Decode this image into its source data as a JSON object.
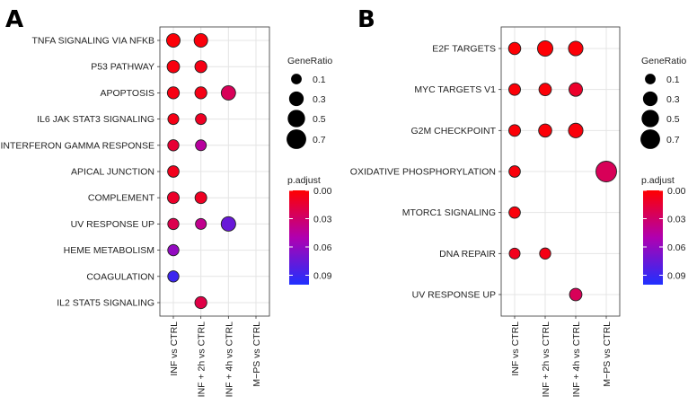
{
  "chart_data": [
    {
      "type": "scatter",
      "panel_label": "A",
      "x_categories": [
        "INF vs CTRL",
        "INF + 2h vs CTRL",
        "INF + 4h vs CTRL",
        "M−PS vs CTRL"
      ],
      "y_categories": [
        "TNFA SIGNALING VIA NFKB",
        "P53 PATHWAY",
        "APOPTOSIS",
        "IL6 JAK STAT3 SIGNALING",
        "INTERFERON GAMMA RESPONSE",
        "APICAL JUNCTION",
        "COMPLEMENT",
        "UV RESPONSE UP",
        "HEME METABOLISM",
        "COAGULATION",
        "IL2 STAT5 SIGNALING"
      ],
      "points": [
        {
          "x": "INF vs CTRL",
          "y": "TNFA SIGNALING VIA NFKB",
          "gene_ratio": 0.2,
          "p_adjust": 0.002
        },
        {
          "x": "INF + 2h vs CTRL",
          "y": "TNFA SIGNALING VIA NFKB",
          "gene_ratio": 0.2,
          "p_adjust": 0.003
        },
        {
          "x": "INF vs CTRL",
          "y": "P53 PATHWAY",
          "gene_ratio": 0.15,
          "p_adjust": 0.004
        },
        {
          "x": "INF + 2h vs CTRL",
          "y": "P53 PATHWAY",
          "gene_ratio": 0.13,
          "p_adjust": 0.006
        },
        {
          "x": "INF vs CTRL",
          "y": "APOPTOSIS",
          "gene_ratio": 0.13,
          "p_adjust": 0.005
        },
        {
          "x": "INF + 2h vs CTRL",
          "y": "APOPTOSIS",
          "gene_ratio": 0.13,
          "p_adjust": 0.006
        },
        {
          "x": "INF + 4h vs CTRL",
          "y": "APOPTOSIS",
          "gene_ratio": 0.24,
          "p_adjust": 0.025
        },
        {
          "x": "INF vs CTRL",
          "y": "IL6 JAK STAT3 SIGNALING",
          "gene_ratio": 0.09,
          "p_adjust": 0.006
        },
        {
          "x": "INF + 2h vs CTRL",
          "y": "IL6 JAK STAT3 SIGNALING",
          "gene_ratio": 0.09,
          "p_adjust": 0.01
        },
        {
          "x": "INF vs CTRL",
          "y": "INTERFERON GAMMA RESPONSE",
          "gene_ratio": 0.1,
          "p_adjust": 0.015
        },
        {
          "x": "INF + 2h vs CTRL",
          "y": "INTERFERON GAMMA RESPONSE",
          "gene_ratio": 0.09,
          "p_adjust": 0.045
        },
        {
          "x": "INF vs CTRL",
          "y": "APICAL JUNCTION",
          "gene_ratio": 0.11,
          "p_adjust": 0.008
        },
        {
          "x": "INF vs CTRL",
          "y": "COMPLEMENT",
          "gene_ratio": 0.12,
          "p_adjust": 0.012
        },
        {
          "x": "INF + 2h vs CTRL",
          "y": "COMPLEMENT",
          "gene_ratio": 0.12,
          "p_adjust": 0.01
        },
        {
          "x": "INF vs CTRL",
          "y": "UV RESPONSE UP",
          "gene_ratio": 0.1,
          "p_adjust": 0.022
        },
        {
          "x": "INF + 2h vs CTRL",
          "y": "UV RESPONSE UP",
          "gene_ratio": 0.09,
          "p_adjust": 0.04
        },
        {
          "x": "INF + 4h vs CTRL",
          "y": "UV RESPONSE UP",
          "gene_ratio": 0.25,
          "p_adjust": 0.075
        },
        {
          "x": "INF vs CTRL",
          "y": "HEME METABOLISM",
          "gene_ratio": 0.1,
          "p_adjust": 0.06
        },
        {
          "x": "INF vs CTRL",
          "y": "COAGULATION",
          "gene_ratio": 0.1,
          "p_adjust": 0.09
        },
        {
          "x": "INF + 2h vs CTRL",
          "y": "IL2 STAT5 SIGNALING",
          "gene_ratio": 0.13,
          "p_adjust": 0.02
        }
      ]
    },
    {
      "type": "scatter",
      "panel_label": "B",
      "x_categories": [
        "INF vs CTRL",
        "INF + 2h vs CTRL",
        "INF + 4h vs CTRL",
        "M−PS vs CTRL"
      ],
      "y_categories": [
        "E2F TARGETS",
        "MYC TARGETS V1",
        "G2M CHECKPOINT",
        "OXIDATIVE PHOSPHORYLATION",
        "MTORC1 SIGNALING",
        "DNA REPAIR",
        "UV RESPONSE UP"
      ],
      "points": [
        {
          "x": "INF vs CTRL",
          "y": "E2F TARGETS",
          "gene_ratio": 0.14,
          "p_adjust": 0.001
        },
        {
          "x": "INF + 2h vs CTRL",
          "y": "E2F TARGETS",
          "gene_ratio": 0.3,
          "p_adjust": 0.001
        },
        {
          "x": "INF + 4h vs CTRL",
          "y": "E2F TARGETS",
          "gene_ratio": 0.25,
          "p_adjust": 0.002
        },
        {
          "x": "INF vs CTRL",
          "y": "MYC TARGETS V1",
          "gene_ratio": 0.12,
          "p_adjust": 0.002
        },
        {
          "x": "INF + 2h vs CTRL",
          "y": "MYC TARGETS V1",
          "gene_ratio": 0.15,
          "p_adjust": 0.002
        },
        {
          "x": "INF + 4h vs CTRL",
          "y": "MYC TARGETS V1",
          "gene_ratio": 0.2,
          "p_adjust": 0.012
        },
        {
          "x": "INF vs CTRL",
          "y": "G2M CHECKPOINT",
          "gene_ratio": 0.12,
          "p_adjust": 0.002
        },
        {
          "x": "INF + 2h vs CTRL",
          "y": "G2M CHECKPOINT",
          "gene_ratio": 0.18,
          "p_adjust": 0.002
        },
        {
          "x": "INF + 4h vs CTRL",
          "y": "G2M CHECKPOINT",
          "gene_ratio": 0.25,
          "p_adjust": 0.003
        },
        {
          "x": "INF vs CTRL",
          "y": "OXIDATIVE PHOSPHORYLATION",
          "gene_ratio": 0.11,
          "p_adjust": 0.003
        },
        {
          "x": "M−PS vs CTRL",
          "y": "OXIDATIVE PHOSPHORYLATION",
          "gene_ratio": 0.7,
          "p_adjust": 0.025
        },
        {
          "x": "INF vs CTRL",
          "y": "MTORC1 SIGNALING",
          "gene_ratio": 0.11,
          "p_adjust": 0.003
        },
        {
          "x": "INF vs CTRL",
          "y": "DNA REPAIR",
          "gene_ratio": 0.09,
          "p_adjust": 0.008
        },
        {
          "x": "INF + 2h vs CTRL",
          "y": "DNA REPAIR",
          "gene_ratio": 0.1,
          "p_adjust": 0.006
        },
        {
          "x": "INF + 4h vs CTRL",
          "y": "UV RESPONSE UP",
          "gene_ratio": 0.15,
          "p_adjust": 0.025
        }
      ]
    }
  ],
  "legends": [
    {
      "size_title": "GeneRatio",
      "size_values": [
        0.1,
        0.3,
        0.5,
        0.7
      ],
      "size_labels": [
        "0.1",
        "0.3",
        "0.5",
        "0.7"
      ],
      "color_title": "p.adjust",
      "color_labels": [
        "0.00",
        "0.03",
        "0.06",
        "0.09"
      ],
      "color_min": 0,
      "color_max": 0.1
    },
    {
      "size_title": "GeneRatio",
      "size_values": [
        0.1,
        0.3,
        0.5,
        0.7
      ],
      "size_labels": [
        "0.1",
        "0.3",
        "0.5",
        "0.7"
      ],
      "color_title": "p.adjust",
      "color_labels": [
        "0.00",
        "0.03",
        "0.06",
        "0.09"
      ],
      "color_min": 0,
      "color_max": 0.1
    }
  ],
  "colors": {
    "low_p": "#ff0000",
    "mid_p": "#b000b0",
    "high_p": "#2030ff"
  }
}
